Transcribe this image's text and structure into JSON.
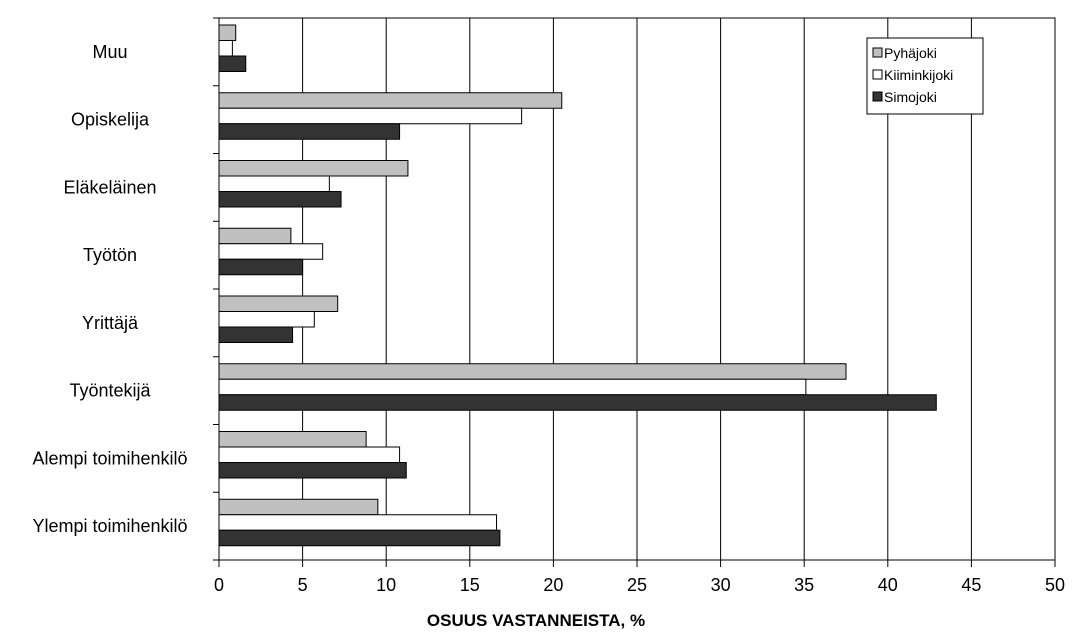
{
  "chart_data": {
    "type": "bar",
    "orientation": "horizontal",
    "xlabel": "OSUUS VASTANNEISTA, %",
    "xlim": [
      0,
      50
    ],
    "xticks": [
      "0",
      "5",
      "10",
      "15",
      "20",
      "25",
      "30",
      "35",
      "40",
      "45",
      "50"
    ],
    "grid": "vertical",
    "legend_position": "top-right",
    "categories": [
      "Muu",
      "Opiskelija",
      "Eläkeläinen",
      "Työtön",
      "Yrittäjä",
      "Työntekijä",
      "Alempi toimihenkilö",
      "Ylempi toimihenkilö"
    ],
    "series": [
      {
        "name": "Pyhäjoki",
        "color": "#c0c0c0",
        "values": [
          1.0,
          20.5,
          11.3,
          4.3,
          7.1,
          37.5,
          8.8,
          9.5
        ]
      },
      {
        "name": "Kiiminkijoki",
        "color": "#ffffff",
        "values": [
          0.8,
          18.1,
          6.6,
          6.2,
          5.7,
          35.1,
          10.8,
          16.6
        ]
      },
      {
        "name": "Simojoki",
        "color": "#333333",
        "values": [
          1.6,
          10.8,
          7.3,
          5.0,
          4.4,
          42.9,
          11.2,
          16.8
        ]
      }
    ]
  }
}
